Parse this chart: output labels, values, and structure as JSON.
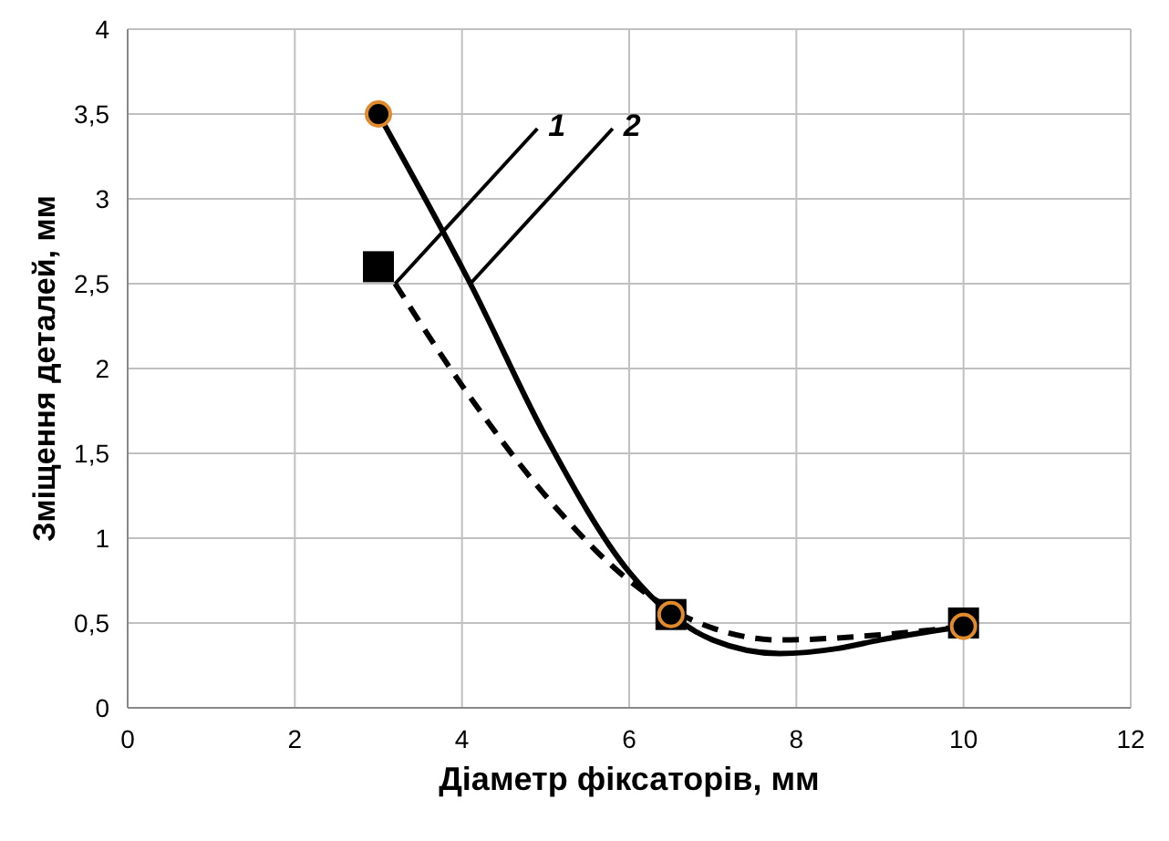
{
  "chart_data": {
    "type": "line",
    "xlabel": "Діаметр фіксаторів, мм",
    "ylabel": "Зміщення деталей, мм",
    "xlim": [
      0,
      12
    ],
    "xticks": [
      0,
      2,
      4,
      6,
      8,
      10,
      12
    ],
    "ylim": [
      0,
      4
    ],
    "yticks": [
      0,
      {
        "value": 0.5,
        "label": "0,5"
      },
      1,
      {
        "value": 1.5,
        "label": "1,5"
      },
      2,
      {
        "value": 2.5,
        "label": "2,5"
      },
      3,
      {
        "value": 3.5,
        "label": "3,5"
      },
      4
    ],
    "grid": true,
    "series": [
      {
        "color": "#000000",
        "line_style": "dashed",
        "x": [
          3.2,
          4,
          5,
          6,
          6.5,
          7,
          7.8,
          9,
          10
        ],
        "values": [
          2.5,
          1.9,
          1.25,
          0.75,
          0.58,
          0.47,
          0.4,
          0.43,
          0.48
        ]
      },
      {
        "color": "#000000",
        "line_style": "solid",
        "x": [
          3,
          4.1,
          5,
          6,
          6.5,
          7,
          7.8,
          8.5,
          9,
          10
        ],
        "values": [
          3.5,
          2.5,
          1.6,
          0.8,
          0.55,
          0.4,
          0.32,
          0.35,
          0.4,
          0.48
        ]
      },
      {
        "type": "scatter",
        "color": "#000000",
        "marker": "square",
        "x": [
          3,
          6.5,
          10
        ],
        "values": [
          2.6,
          0.55,
          0.5
        ]
      },
      {
        "type": "scatter",
        "color": "#000000",
        "marker": "circle",
        "x": [
          3,
          6.5,
          10
        ],
        "values": [
          3.5,
          0.55,
          0.48
        ]
      }
    ],
    "annotations": [
      {
        "text": "1",
        "x": 3.2,
        "y": 2.5
      },
      {
        "text": "2",
        "x": 4.1,
        "y": 2.5
      }
    ]
  }
}
